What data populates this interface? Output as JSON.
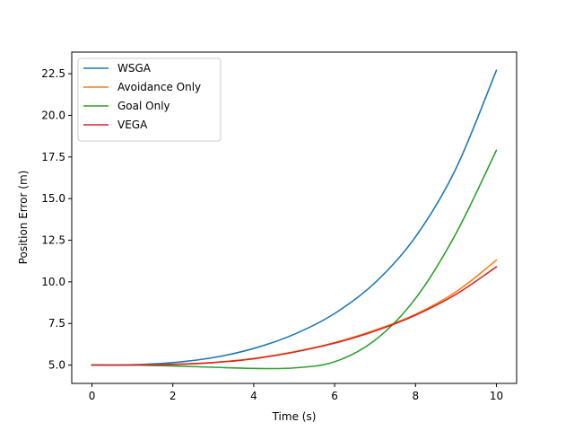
{
  "chart_data": {
    "type": "line",
    "xlabel": "Time (s)",
    "ylabel": "Position Error (m)",
    "xlim": [
      -0.5,
      10.5
    ],
    "ylim": [
      3.9,
      23.8
    ],
    "xticks": [
      0,
      2,
      4,
      6,
      8,
      10
    ],
    "xtick_labels": [
      "0",
      "2",
      "4",
      "6",
      "8",
      "10"
    ],
    "yticks": [
      5.0,
      7.5,
      10.0,
      12.5,
      15.0,
      17.5,
      20.0,
      22.5
    ],
    "ytick_labels": [
      "5.0",
      "7.5",
      "10.0",
      "12.5",
      "15.0",
      "17.5",
      "20.0",
      "22.5"
    ],
    "grid": false,
    "legend_position": "top-left",
    "x": [
      0,
      1,
      2,
      3,
      4,
      5,
      6,
      7,
      8,
      9,
      10
    ],
    "series": [
      {
        "name": "WSGA",
        "color": "#1f77b4",
        "values": [
          5.0,
          5.02,
          5.15,
          5.45,
          6.0,
          6.85,
          8.1,
          9.95,
          12.7,
          16.8,
          22.7
        ]
      },
      {
        "name": "Avoidance Only",
        "color": "#ff7f0e",
        "values": [
          5.0,
          5.0,
          5.05,
          5.15,
          5.4,
          5.8,
          6.35,
          7.1,
          8.05,
          9.4,
          11.3
        ]
      },
      {
        "name": "Goal Only",
        "color": "#2ca02c",
        "values": [
          5.0,
          5.0,
          4.95,
          4.87,
          4.8,
          4.83,
          5.2,
          6.5,
          9.0,
          12.9,
          17.9
        ]
      },
      {
        "name": "VEGA",
        "color": "#d62728",
        "values": [
          5.0,
          5.0,
          5.04,
          5.15,
          5.38,
          5.78,
          6.32,
          7.05,
          8.0,
          9.25,
          10.9
        ]
      }
    ]
  }
}
